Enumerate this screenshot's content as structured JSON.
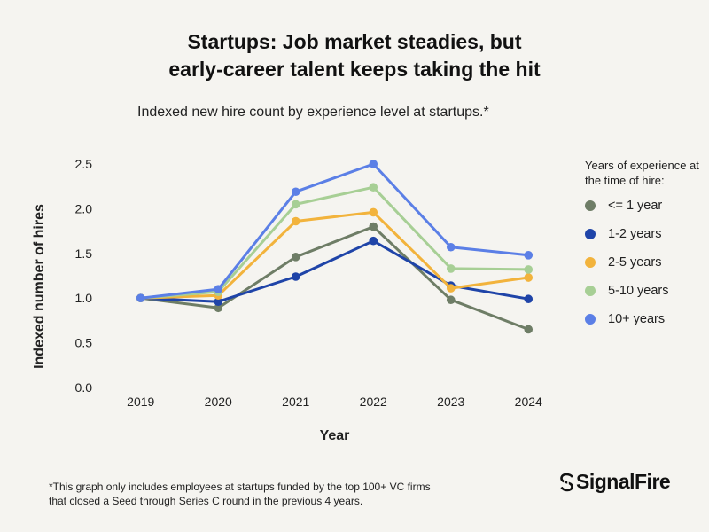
{
  "title_lines": [
    "Startups: Job market steadies, but",
    "early-career talent keeps taking the hit"
  ],
  "subtitle": "Indexed new hire count by experience level at startups.*",
  "legend_title": "Years of experience at the time of hire:",
  "footnote_lines": [
    "*This graph only includes employees at startups funded by the top 100+ VC firms",
    "that closed a Seed through Series C round in the previous 4 years."
  ],
  "logo_text": "SignalFire",
  "logo_icon": "signalfire-logo-icon",
  "chart_data": {
    "type": "line",
    "title": "Startups: Job market steadies, but early-career talent keeps taking the hit",
    "subtitle": "Indexed new hire count by experience level at startups.*",
    "xlabel": "Year",
    "ylabel": "Indexed number of hires",
    "x": [
      "2019",
      "2020",
      "2021",
      "2022",
      "2023",
      "2024"
    ],
    "ylim": [
      0,
      2.5
    ],
    "yticks": [
      "0.0",
      "0.5",
      "1.0",
      "1.5",
      "2.0",
      "2.5"
    ],
    "grid": false,
    "legend_position": "right",
    "series": [
      {
        "name": "<= 1 year",
        "color": "#6e7d66",
        "values": [
          1.0,
          0.89,
          1.46,
          1.8,
          0.98,
          0.65
        ]
      },
      {
        "name": "1-2 years",
        "color": "#1f44a8",
        "values": [
          1.0,
          0.96,
          1.24,
          1.64,
          1.14,
          0.99
        ]
      },
      {
        "name": "2-5 years",
        "color": "#f2b33c",
        "values": [
          1.0,
          1.03,
          1.86,
          1.96,
          1.11,
          1.23
        ]
      },
      {
        "name": "5-10 years",
        "color": "#a7cf95",
        "values": [
          1.0,
          1.07,
          2.05,
          2.24,
          1.33,
          1.32
        ]
      },
      {
        "name": "10+ years",
        "color": "#5b7fe6",
        "values": [
          1.0,
          1.1,
          2.19,
          2.5,
          1.57,
          1.48
        ]
      }
    ]
  }
}
